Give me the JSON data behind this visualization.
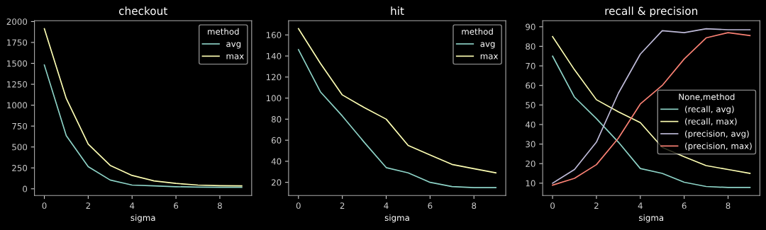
{
  "chart_data": [
    {
      "type": "line",
      "title": "checkout",
      "xlabel": "sigma",
      "legend_title": "method",
      "legend": "top right",
      "grid": false,
      "x": [
        0,
        1,
        2,
        3,
        4,
        5,
        6,
        7,
        8,
        9
      ],
      "xlim": [
        -0.45,
        9.45
      ],
      "xticks": [
        0,
        2,
        4,
        6,
        8
      ],
      "ylim": [
        -80,
        2010
      ],
      "yticks": [
        0,
        250,
        500,
        750,
        1000,
        1250,
        1500,
        1750,
        2000
      ],
      "series": [
        {
          "name": "avg",
          "color": "#8dd3c7",
          "values": [
            1480,
            635,
            265,
            105,
            45,
            35,
            25,
            20,
            18,
            18
          ]
        },
        {
          "name": "max",
          "color": "#feffb3",
          "values": [
            1915,
            1080,
            535,
            280,
            160,
            95,
            65,
            45,
            38,
            35
          ]
        }
      ]
    },
    {
      "type": "line",
      "title": "hit",
      "xlabel": "sigma",
      "legend_title": "method",
      "legend": "top right",
      "grid": false,
      "x": [
        0,
        1,
        2,
        3,
        4,
        5,
        6,
        7,
        8,
        9
      ],
      "xlim": [
        -0.45,
        9.45
      ],
      "xticks": [
        0,
        2,
        4,
        6,
        8
      ],
      "ylim": [
        7.5,
        173.5
      ],
      "yticks": [
        20,
        40,
        60,
        80,
        100,
        120,
        140,
        160
      ],
      "series": [
        {
          "name": "avg",
          "color": "#8dd3c7",
          "values": [
            146,
            106,
            83,
            58,
            34,
            29,
            20,
            16,
            15,
            15
          ]
        },
        {
          "name": "max",
          "color": "#feffb3",
          "values": [
            166,
            133,
            103,
            91,
            80,
            55,
            46,
            37,
            33,
            29
          ]
        }
      ]
    },
    {
      "type": "line",
      "title": "recall & precision",
      "xlabel": "sigma",
      "legend_title": "None,method",
      "legend": "center right",
      "grid": false,
      "x": [
        0,
        1,
        2,
        3,
        4,
        5,
        6,
        7,
        8,
        9
      ],
      "xlim": [
        -0.45,
        9.45
      ],
      "xticks": [
        0,
        2,
        4,
        6,
        8
      ],
      "ylim": [
        3.7,
        93.1
      ],
      "yticks": [
        10,
        20,
        30,
        40,
        50,
        60,
        70,
        80,
        90
      ],
      "series": [
        {
          "name": "(recall, avg)",
          "color": "#8dd3c7",
          "values": [
            75,
            54,
            43,
            31,
            17.5,
            15,
            10.5,
            8.3,
            7.8,
            7.8
          ]
        },
        {
          "name": "(recall, max)",
          "color": "#feffb3",
          "values": [
            85,
            68,
            52.7,
            46.5,
            41,
            28.3,
            23.5,
            19,
            17,
            15
          ]
        },
        {
          "name": "(precision, avg)",
          "color": "#bfbbd9",
          "values": [
            10,
            17,
            31,
            56,
            76,
            88,
            87,
            89,
            88.5,
            88.5
          ]
        },
        {
          "name": "(precision, max)",
          "color": "#fa8174",
          "values": [
            9,
            12.5,
            19.5,
            33,
            50.5,
            60,
            73.5,
            84.3,
            87,
            85.5
          ]
        }
      ]
    }
  ]
}
